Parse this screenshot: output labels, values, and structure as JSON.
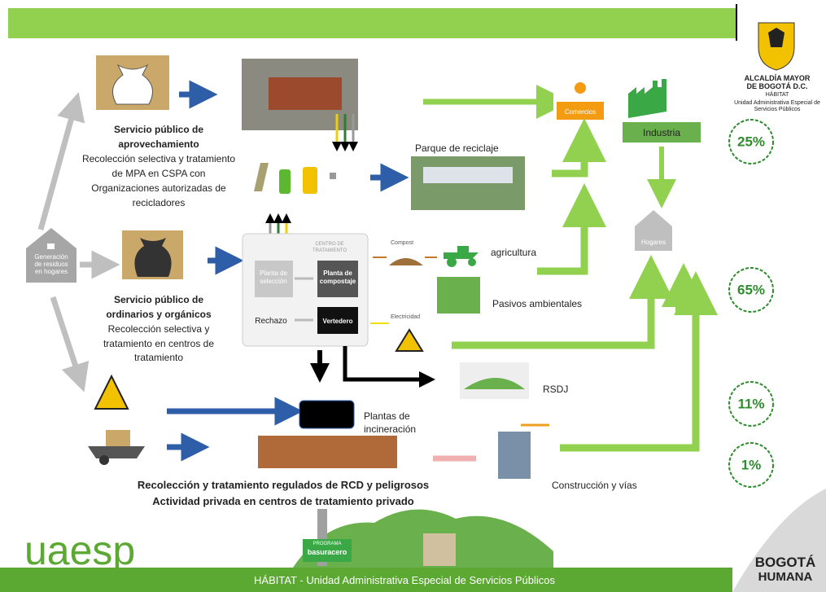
{
  "logo": {
    "lines": [
      "ALCALDÍA MAYOR",
      "DE BOGOTÁ D.C.",
      "HÁBITAT",
      "Unidad Administrativa Especial de",
      "Servicios Públicos"
    ]
  },
  "aprovechamiento": {
    "title": [
      "Servicio público de",
      "aprovechamiento"
    ],
    "text": [
      "Recolección selectiva  y tratamiento",
      "de MPA en CSPA con",
      "Organizaciones autorizadas de",
      "recicladores"
    ]
  },
  "parque": "Parque de reciclaje",
  "comercios": "Comercios",
  "industria": "Industria",
  "hogares": "Hogares",
  "percentages": [
    "25%",
    "65%",
    "11%",
    "1%"
  ],
  "generacion": [
    "Generación",
    "de residuos",
    "en hogares"
  ],
  "centro": {
    "title": [
      "CENTRO DE",
      "TRATAMIENTO"
    ],
    "seleccion": [
      "Planta de",
      "selección"
    ],
    "compostaje": [
      "Planta de",
      "compostaje"
    ],
    "rechazo": "Rechazo",
    "vertedero": "Vertedero"
  },
  "compost": "Compost",
  "agricultura": "agricultura",
  "pasivos": "Pasivos ambientales",
  "electricidad": "Electricidad",
  "rsdj": "RSDJ",
  "ordinarios": {
    "title": [
      "Servicio público de",
      "ordinarios  y orgánicos"
    ],
    "text": [
      "Recolección selectiva  y",
      "tratamiento  en  centros de",
      "tratamiento"
    ]
  },
  "incineracion": [
    "Plantas de",
    "incineración"
  ],
  "construccion": "Construcción y vías",
  "rcd": [
    "Recolección y tratamiento regulados de RCD y peligrosos",
    "Actividad privada en centros de  tratamiento privado"
  ],
  "basura": [
    "PROGRAMA",
    "basuracero"
  ],
  "uaesp": "uaesp",
  "footer": "HÁBITAT - Unidad Administrativa Especial de Servicios Públicos",
  "bogota": [
    "BOGOTÁ",
    "HUMANA"
  ]
}
